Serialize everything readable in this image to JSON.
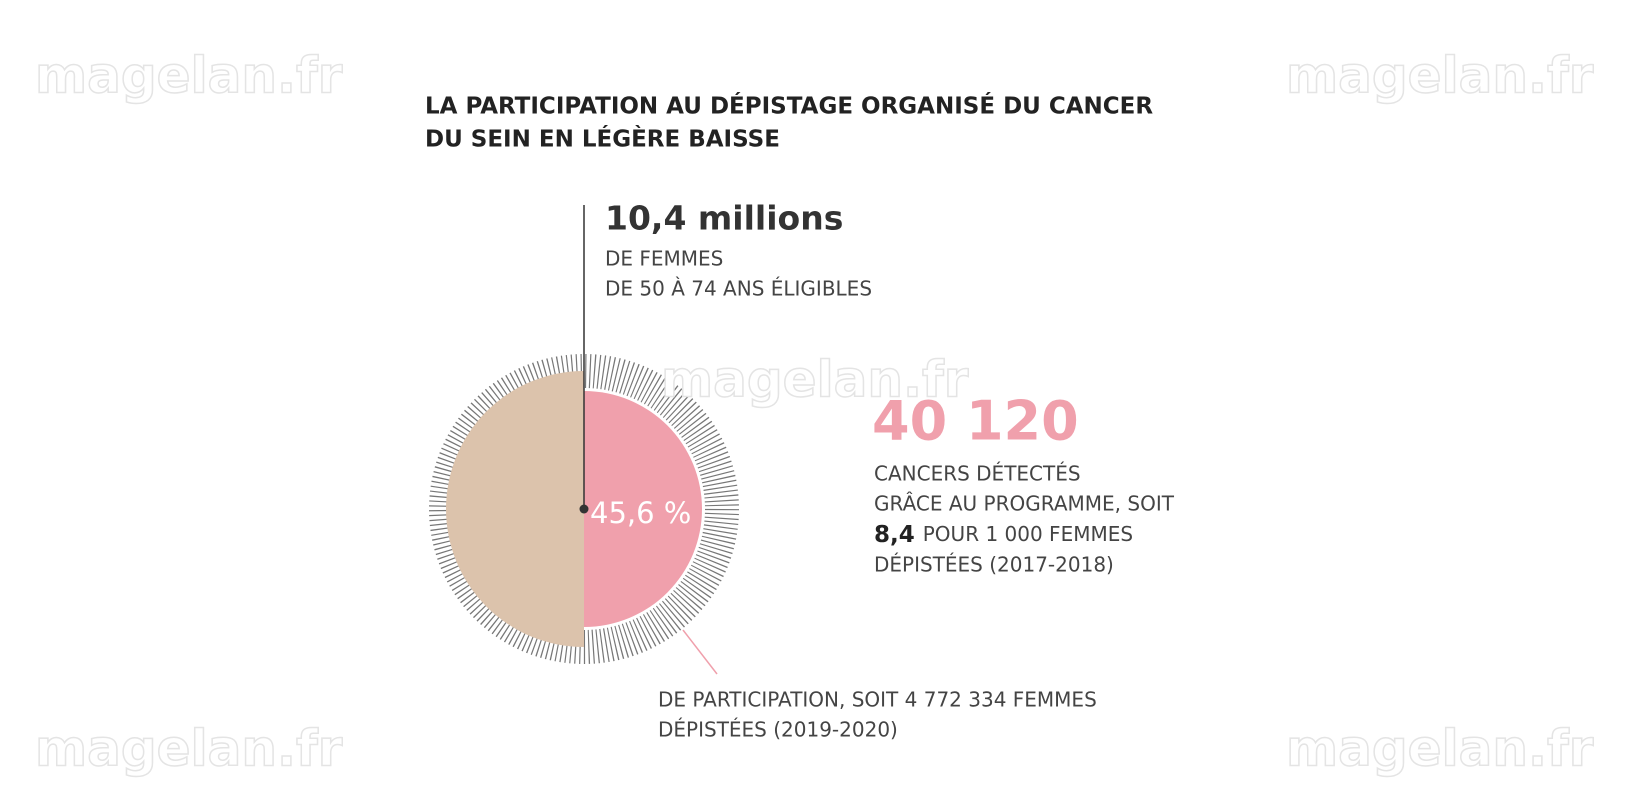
{
  "watermarks": [
    "magelan.fr",
    "magelan.fr",
    "magelan.fr",
    "magelan.fr",
    "magelan.fr"
  ],
  "title": [
    "LA PARTICIPATION AU DÉPISTAGE ORGANISÉ DU CANCER",
    "DU SEIN EN LÉGÈRE BAISSE"
  ],
  "eligible": {
    "figure": "10,4 millions",
    "lines": [
      "DE FEMMES",
      "DE 50 À 74 ANS ÉLIGIBLES"
    ]
  },
  "participation": {
    "figure": "45,6 %",
    "lines": [
      "DE PARTICIPATION, SOIT 4 772 334 FEMMES",
      "DÉPISTÉES (2019-2020)"
    ]
  },
  "cancers": {
    "figure": "40 120",
    "lines": [
      "CANCERS DÉTECTÉS",
      "GRÂCE AU PROGRAMME, SOIT"
    ],
    "rate": "8,4",
    "rate_text": "POUR 1 000 FEMMES",
    "last": "DÉPISTÉES (2017-2018)"
  }
}
